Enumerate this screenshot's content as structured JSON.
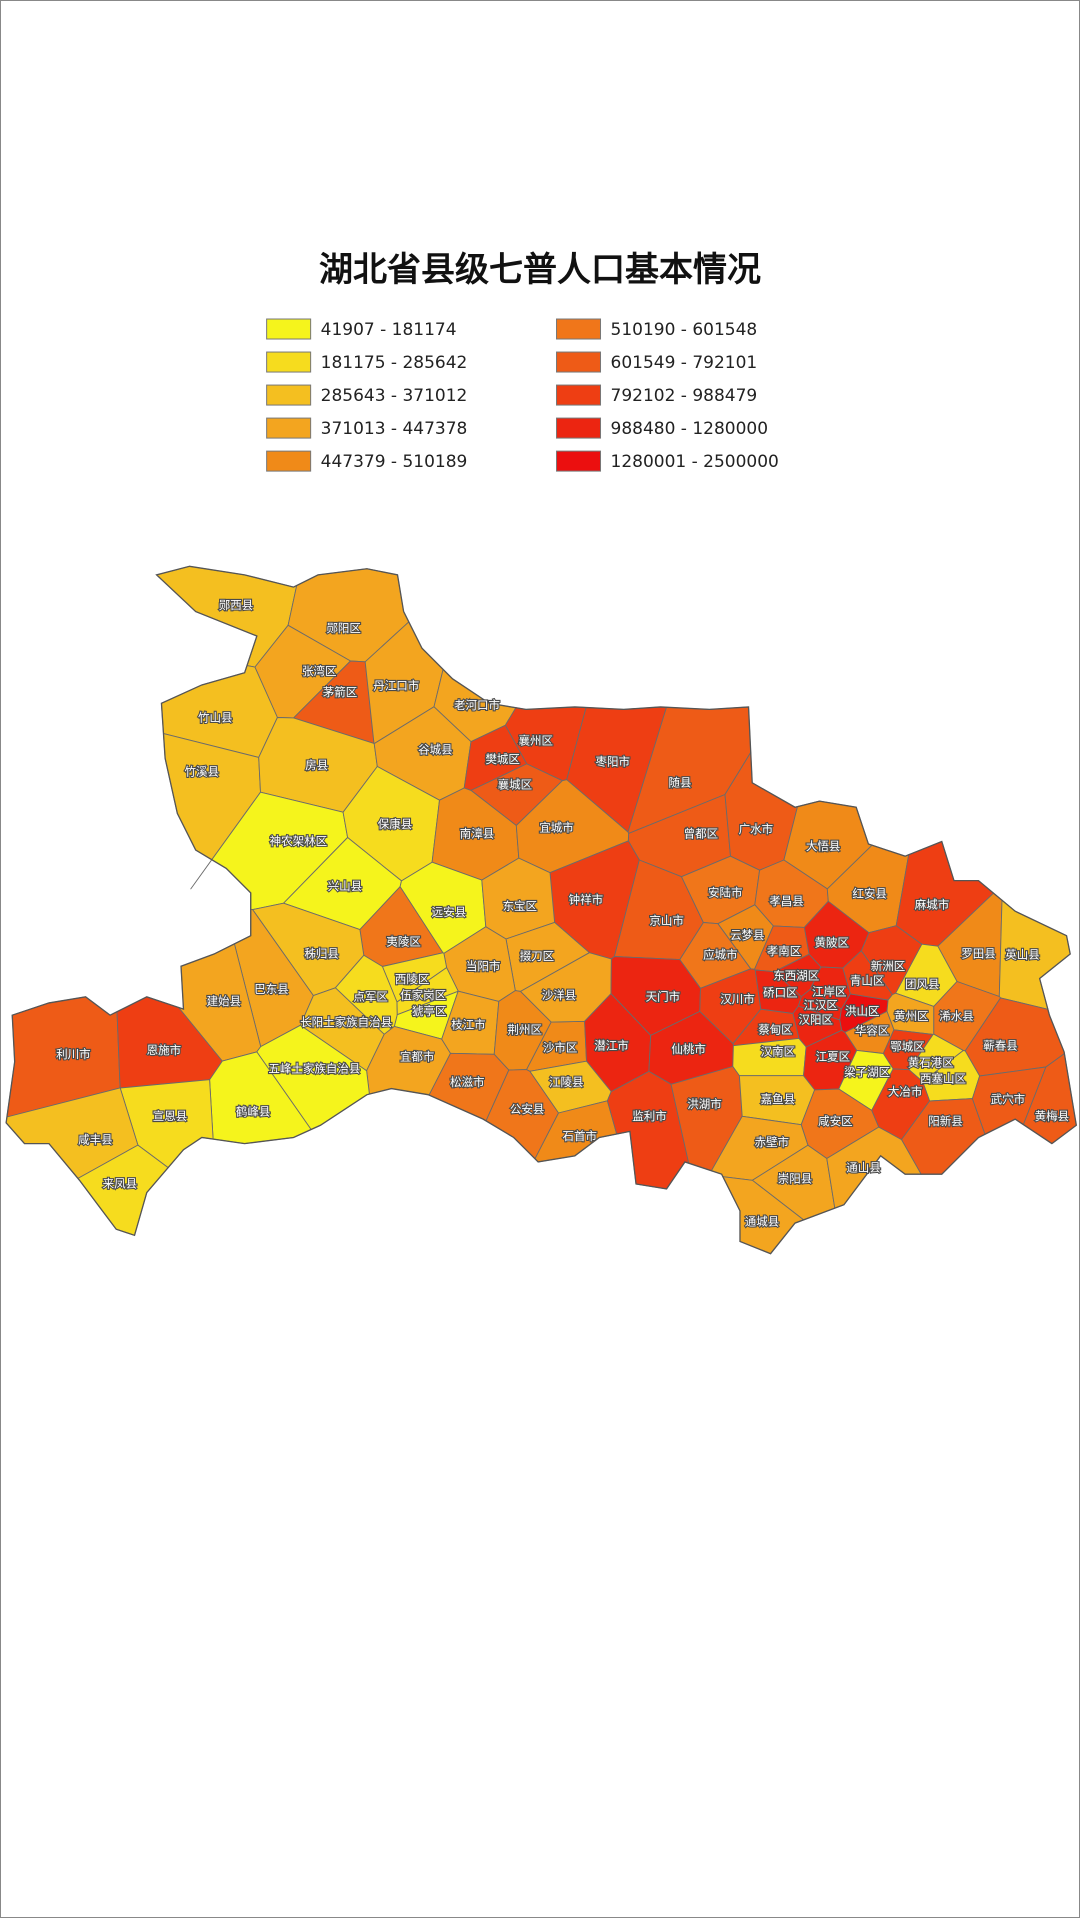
{
  "title": "湖北省县级七普人口基本情况",
  "legend": [
    {
      "label": "41907 - 181174",
      "color": "#f5f41c"
    },
    {
      "label": "181175 - 285642",
      "color": "#f6dc1e"
    },
    {
      "label": "285643 - 371012",
      "color": "#f4bf20"
    },
    {
      "label": "371013 - 447378",
      "color": "#f3a51f"
    },
    {
      "label": "447379 - 510189",
      "color": "#f08a18"
    },
    {
      "label": "510190 - 601548",
      "color": "#f0761a"
    },
    {
      "label": "601549 - 792101",
      "color": "#ee5b17"
    },
    {
      "label": "792102 - 988479",
      "color": "#ee3e13"
    },
    {
      "label": "988480 - 1280000",
      "color": "#ec2511"
    },
    {
      "label": "1280001 - 2500000",
      "color": "#eb0f0f"
    }
  ],
  "regions": [
    {
      "name": "郧西县",
      "color": "#f4bf20"
    },
    {
      "name": "郧阳区",
      "color": "#f3a51f"
    },
    {
      "name": "张湾区",
      "color": "#f3a51f"
    },
    {
      "name": "茅箭区",
      "color": "#ee5b17"
    },
    {
      "name": "丹江口市",
      "color": "#f3a51f"
    },
    {
      "name": "竹山县",
      "color": "#f4bf20"
    },
    {
      "name": "竹溪县",
      "color": "#f4bf20"
    },
    {
      "name": "房县",
      "color": "#f4bf20"
    },
    {
      "name": "老河口市",
      "color": "#f3a51f"
    },
    {
      "name": "谷城县",
      "color": "#f3a51f"
    },
    {
      "name": "襄州区",
      "color": "#ee3e13"
    },
    {
      "name": "樊城区",
      "color": "#ee3e13"
    },
    {
      "name": "襄城区",
      "color": "#ee5b17"
    },
    {
      "name": "枣阳市",
      "color": "#ee3e13"
    },
    {
      "name": "随县",
      "color": "#ee5b17"
    },
    {
      "name": "曾都区",
      "color": "#ee5b17"
    },
    {
      "name": "广水市",
      "color": "#ee5b17"
    },
    {
      "name": "神农架林区",
      "color": "#f5f41c"
    },
    {
      "name": "保康县",
      "color": "#f6dc1e"
    },
    {
      "name": "南漳县",
      "color": "#f08a18"
    },
    {
      "name": "宜城市",
      "color": "#f08a18"
    },
    {
      "name": "大悟县",
      "color": "#f08a18"
    },
    {
      "name": "兴山县",
      "color": "#f5f41c"
    },
    {
      "name": "远安县",
      "color": "#f5f41c"
    },
    {
      "name": "钟祥市",
      "color": "#ee3e13"
    },
    {
      "name": "京山市",
      "color": "#ee5b17"
    },
    {
      "name": "安陆市",
      "color": "#f0761a"
    },
    {
      "name": "孝昌县",
      "color": "#f0761a"
    },
    {
      "name": "红安县",
      "color": "#f08a18"
    },
    {
      "name": "麻城市",
      "color": "#ee3e13"
    },
    {
      "name": "黄陂区",
      "color": "#ec2511"
    },
    {
      "name": "东宝区",
      "color": "#f3a51f"
    },
    {
      "name": "掇刀区",
      "color": "#f3a51f"
    },
    {
      "name": "夷陵区",
      "color": "#f0761a"
    },
    {
      "name": "秭归县",
      "color": "#f4bf20"
    },
    {
      "name": "巴东县",
      "color": "#f3a51f"
    },
    {
      "name": "建始县",
      "color": "#f3a51f"
    },
    {
      "name": "当阳市",
      "color": "#f3a51f"
    },
    {
      "name": "应城市",
      "color": "#f0761a"
    },
    {
      "name": "云梦县",
      "color": "#f08a18"
    },
    {
      "name": "孝南区",
      "color": "#ee5b17"
    },
    {
      "name": "罗田县",
      "color": "#f08a18"
    },
    {
      "name": "英山县",
      "color": "#f4bf20"
    },
    {
      "name": "团风县",
      "color": "#f6dc1e"
    },
    {
      "name": "利川市",
      "color": "#ee5b17"
    },
    {
      "name": "恩施市",
      "color": "#ee3e13"
    },
    {
      "name": "西陵区",
      "color": "#f6dc1e"
    },
    {
      "name": "点军区",
      "color": "#f6dc1e"
    },
    {
      "name": "伍家岗区",
      "color": "#f6dc1e"
    },
    {
      "name": "猇亭区",
      "color": "#f5f41c"
    },
    {
      "name": "长阳土家族自治县",
      "color": "#f4bf20"
    },
    {
      "name": "宜都市",
      "color": "#f3a51f"
    },
    {
      "name": "枝江市",
      "color": "#f3a51f"
    },
    {
      "name": "荆州区",
      "color": "#f08a18"
    },
    {
      "name": "沙市区",
      "color": "#f08a18"
    },
    {
      "name": "沙洋县",
      "color": "#f3a51f"
    },
    {
      "name": "天门市",
      "color": "#ec2511"
    },
    {
      "name": "汉川市",
      "color": "#ee3e13"
    },
    {
      "name": "东西湖区",
      "color": "#ec2511"
    },
    {
      "name": "硚口区",
      "color": "#ec2511"
    },
    {
      "name": "江岸区",
      "color": "#ec2511"
    },
    {
      "name": "江汉区",
      "color": "#ec2511"
    },
    {
      "name": "汉阳区",
      "color": "#ec2511"
    },
    {
      "name": "洪山区",
      "color": "#eb0f0f"
    },
    {
      "name": "青山区",
      "color": "#ee3e13"
    },
    {
      "name": "新洲区",
      "color": "#ee3e13"
    },
    {
      "name": "黄州区",
      "color": "#f3a51f"
    },
    {
      "name": "浠水县",
      "color": "#f0761a"
    },
    {
      "name": "蕲春县",
      "color": "#ee5b17"
    },
    {
      "name": "华容区",
      "color": "#f08a18"
    },
    {
      "name": "蔡甸区",
      "color": "#ee3e13"
    },
    {
      "name": "潜江市",
      "color": "#ec2511"
    },
    {
      "name": "仙桃市",
      "color": "#ec2511"
    },
    {
      "name": "汉南区",
      "color": "#f6dc1e"
    },
    {
      "name": "江夏区",
      "color": "#ec2511"
    },
    {
      "name": "鄂城区",
      "color": "#ee3e13"
    },
    {
      "name": "黄石港区",
      "color": "#f6dc1e"
    },
    {
      "name": "西塞山区",
      "color": "#f6dc1e"
    },
    {
      "name": "梁子湖区",
      "color": "#f5f41c"
    },
    {
      "name": "大冶市",
      "color": "#ee3e13"
    },
    {
      "name": "松滋市",
      "color": "#f0761a"
    },
    {
      "name": "江陵县",
      "color": "#f4bf20"
    },
    {
      "name": "五峰土家族自治县",
      "color": "#f5f41c"
    },
    {
      "name": "鹤峰县",
      "color": "#f5f41c"
    },
    {
      "name": "宣恩县",
      "color": "#f6dc1e"
    },
    {
      "name": "咸丰县",
      "color": "#f4bf20"
    },
    {
      "name": "来凤县",
      "color": "#f6dc1e"
    },
    {
      "name": "公安县",
      "color": "#f0761a"
    },
    {
      "name": "石首市",
      "color": "#f08a18"
    },
    {
      "name": "监利市",
      "color": "#ee3e13"
    },
    {
      "name": "洪湖市",
      "color": "#ee5b17"
    },
    {
      "name": "嘉鱼县",
      "color": "#f4bf20"
    },
    {
      "name": "咸安区",
      "color": "#f0761a"
    },
    {
      "name": "赤壁市",
      "color": "#f3a51f"
    },
    {
      "name": "阳新县",
      "color": "#ee5b17"
    },
    {
      "name": "武穴市",
      "color": "#ee5b17"
    },
    {
      "name": "黄梅县",
      "color": "#ee5b17"
    },
    {
      "name": "崇阳县",
      "color": "#f3a51f"
    },
    {
      "name": "通山县",
      "color": "#f3a51f"
    },
    {
      "name": "通城县",
      "color": "#f3a51f"
    }
  ]
}
